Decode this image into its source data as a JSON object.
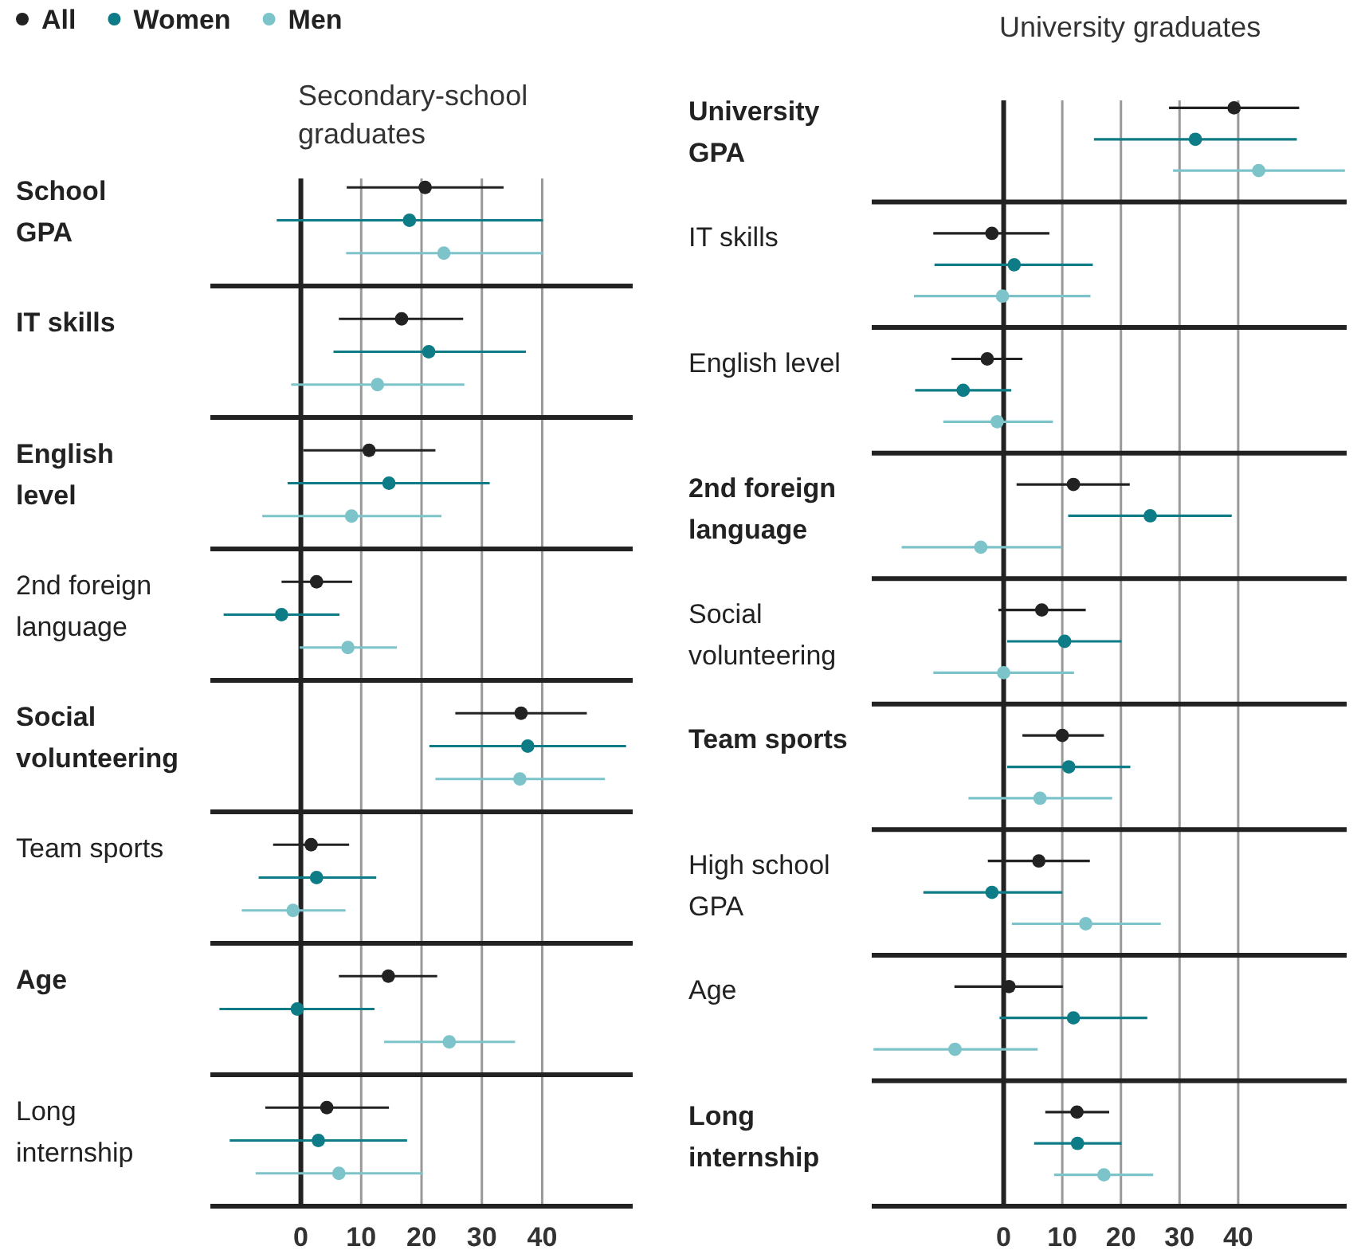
{
  "chart_data": [
    {
      "type": "scatter",
      "title": "Secondary-school graduates",
      "orientation": "horizontal",
      "marker": "circle",
      "grid": "x",
      "legend": "top left",
      "categories": [
        "School GPA",
        "IT skills",
        "English level",
        "2nd foreign language",
        "Social volunteering",
        "Team sports",
        "Age",
        "Long internship"
      ],
      "xlim": [
        -15,
        55
      ],
      "xticks": [
        0,
        10,
        20,
        30,
        40
      ],
      "series": [
        {
          "name": "All",
          "color": "#222222",
          "values": [
            20.6,
            16.7,
            11.3,
            2.6,
            36.5,
            1.7,
            14.5,
            4.3
          ],
          "errors": [
            [
              7.6,
              33.6
            ],
            [
              6.3,
              26.9
            ],
            [
              0.4,
              22.3
            ],
            [
              -3.2,
              8.5
            ],
            [
              25.6,
              47.4
            ],
            [
              -4.6,
              8.0
            ],
            [
              6.3,
              22.6
            ],
            [
              -5.9,
              14.6
            ]
          ]
        },
        {
          "name": "Women",
          "color": "#0e7c86",
          "values": [
            18.0,
            21.2,
            14.6,
            -3.2,
            37.6,
            2.6,
            -0.6,
            2.9
          ],
          "errors": [
            [
              -4.0,
              40.1
            ],
            [
              5.4,
              37.3
            ],
            [
              -2.2,
              31.3
            ],
            [
              -12.8,
              6.4
            ],
            [
              21.3,
              53.9
            ],
            [
              -7.0,
              12.5
            ],
            [
              -13.5,
              12.2
            ],
            [
              -11.8,
              17.6
            ]
          ]
        },
        {
          "name": "Men",
          "color": "#7cc4c9",
          "values": [
            23.7,
            12.7,
            8.4,
            7.8,
            36.3,
            -1.3,
            24.6,
            6.3
          ],
          "errors": [
            [
              7.5,
              40.1
            ],
            [
              -1.6,
              27.1
            ],
            [
              -6.4,
              23.3
            ],
            [
              -0.2,
              15.9
            ],
            [
              22.3,
              50.4
            ],
            [
              -9.8,
              7.4
            ],
            [
              13.8,
              35.5
            ],
            [
              -7.5,
              20.2
            ]
          ]
        }
      ]
    },
    {
      "type": "scatter",
      "title": "University graduates",
      "orientation": "horizontal",
      "marker": "circle",
      "grid": "x",
      "categories": [
        "University GPA",
        "IT skills",
        "English level",
        "2nd foreign language",
        "Social volunteering",
        "Team sports",
        "High school GPA",
        "Age",
        "Long internship"
      ],
      "xlim": [
        -22.5,
        58.5
      ],
      "xticks": [
        0,
        10,
        20,
        30,
        40
      ],
      "series": [
        {
          "color": "#222222",
          "values": [
            39.3,
            -2.0,
            -2.8,
            11.9,
            6.5,
            10.0,
            6.0,
            0.9,
            12.5
          ],
          "errors": [
            [
              28.2,
              50.4
            ],
            [
              -12.0,
              7.8
            ],
            [
              -8.9,
              3.2
            ],
            [
              2.2,
              21.5
            ],
            [
              -0.9,
              14.0
            ],
            [
              3.2,
              17.1
            ],
            [
              -2.7,
              14.7
            ],
            [
              -8.4,
              10.1
            ],
            [
              7.1,
              18.0
            ]
          ]
        },
        {
          "color": "#0e7c86",
          "values": [
            32.7,
            1.8,
            -6.9,
            25.0,
            10.4,
            11.1,
            -2.0,
            11.9,
            12.6
          ],
          "errors": [
            [
              15.4,
              50.0
            ],
            [
              -11.8,
              15.2
            ],
            [
              -15.1,
              1.3
            ],
            [
              11.0,
              38.9
            ],
            [
              0.6,
              20.1
            ],
            [
              0.6,
              21.6
            ],
            [
              -13.7,
              10.0
            ],
            [
              -0.7,
              24.5
            ],
            [
              5.2,
              20.1
            ]
          ]
        },
        {
          "color": "#7cc4c9",
          "values": [
            43.5,
            -0.2,
            -1.1,
            -3.9,
            0.0,
            6.2,
            14.0,
            -8.3,
            17.1
          ],
          "errors": [
            [
              28.9,
              58.2
            ],
            [
              -15.3,
              14.8
            ],
            [
              -10.3,
              8.4
            ],
            [
              -17.4,
              9.9
            ],
            [
              -12.0,
              12.0
            ],
            [
              -6.0,
              18.5
            ],
            [
              1.4,
              26.8
            ],
            [
              -22.2,
              5.8
            ],
            [
              8.6,
              25.5
            ]
          ]
        }
      ]
    }
  ]
}
